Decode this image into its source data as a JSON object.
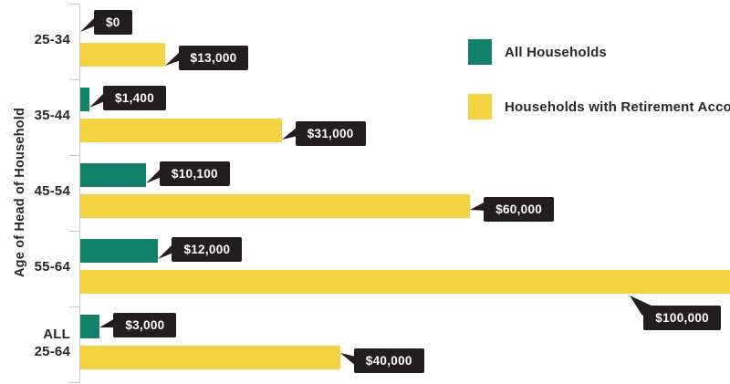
{
  "chart_data": {
    "type": "bar",
    "orientation": "horizontal",
    "title": "",
    "xlabel": "",
    "ylabel": "Age of Head of Household",
    "categories": [
      "25-34",
      "35-44",
      "45-54",
      "55-64",
      "ALL 25-64"
    ],
    "category_display": [
      {
        "line1": "25-34",
        "line2": ""
      },
      {
        "line1": "35-44",
        "line2": ""
      },
      {
        "line1": "45-54",
        "line2": ""
      },
      {
        "line1": "55-64",
        "line2": ""
      },
      {
        "line1": "ALL",
        "line2": "25-64"
      }
    ],
    "series": [
      {
        "name": "All Households",
        "color": "#12826B",
        "values": [
          0,
          1400,
          10100,
          12000,
          3000
        ],
        "value_labels": [
          "$0",
          "$1,400",
          "$10,100",
          "$12,000",
          "$3,000"
        ]
      },
      {
        "name": "Households with Retirement Accounts",
        "color": "#F5D443",
        "values": [
          13000,
          31000,
          60000,
          100000,
          40000
        ],
        "value_labels": [
          "$13,000",
          "$31,000",
          "$60,000",
          "$100,000",
          "$40,000"
        ]
      }
    ],
    "xlim": [
      0,
      100000
    ],
    "grid": false,
    "legend_position": "upper right",
    "value_label_style": "black-callout-bubbles"
  },
  "colors": {
    "green": "#12826B",
    "yellow": "#F5D443",
    "dark": "#221E1F",
    "axis": "#C9C9C9",
    "text": "#2B2727"
  }
}
